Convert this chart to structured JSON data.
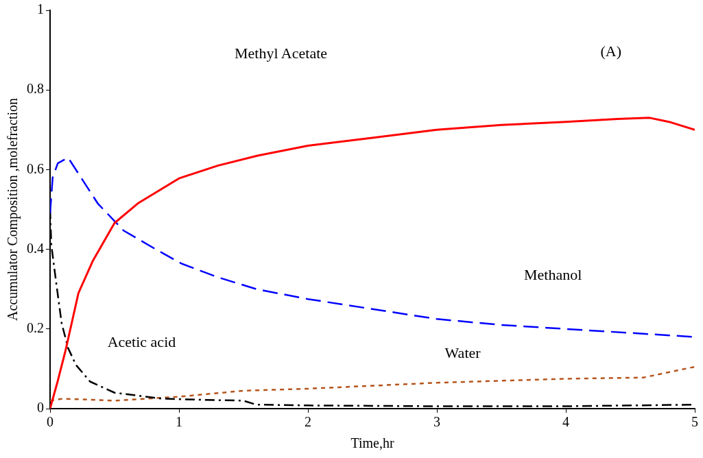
{
  "chart_data": {
    "type": "line",
    "xlabel": "Time,hr",
    "ylabel": "Accumulator Composition ,molefraction",
    "xlim": [
      0,
      5
    ],
    "xticks": [
      0,
      1,
      2,
      3,
      4,
      5
    ],
    "ylim": [
      0,
      1
    ],
    "yticks": [
      0,
      0.2,
      0.4,
      0.6,
      0.8,
      1
    ],
    "grid": false,
    "legend": false,
    "marker": "none",
    "series": [
      {
        "color": "#ff0000",
        "line_style": "solid",
        "x": [
          0,
          0.06,
          0.12,
          0.22,
          0.33,
          0.5,
          0.68,
          1,
          1.3,
          1.61,
          2,
          2.5,
          3,
          3.5,
          4,
          4.4,
          4.65,
          4.8,
          5
        ],
        "values": [
          0,
          0.07,
          0.146,
          0.29,
          0.37,
          0.466,
          0.515,
          0.578,
          0.61,
          0.635,
          0.66,
          0.68,
          0.7,
          0.712,
          0.72,
          0.727,
          0.73,
          0.72,
          0.7
        ]
      },
      {
        "name": "Methanol",
        "color": "#0000ff",
        "line_style": "dashed",
        "x": [
          0,
          0.02,
          0.06,
          0.14,
          0.25,
          0.37,
          0.57,
          0.82,
          1.02,
          1.3,
          1.6,
          2,
          2.5,
          3,
          3.5,
          4,
          4.5,
          5
        ],
        "values": [
          0.49,
          0.58,
          0.616,
          0.63,
          0.575,
          0.515,
          0.447,
          0.4,
          0.364,
          0.33,
          0.3,
          0.275,
          0.25,
          0.225,
          0.21,
          0.2,
          0.19,
          0.18
        ]
      },
      {
        "name": "Acetic acid",
        "color": "#000000",
        "line_style": "dashdot",
        "x": [
          0,
          0.01,
          0.05,
          0.09,
          0.14,
          0.2,
          0.31,
          0.5,
          0.87,
          1.2,
          1.5,
          1.6,
          2,
          3,
          4,
          5
        ],
        "values": [
          0.5,
          0.41,
          0.31,
          0.214,
          0.152,
          0.11,
          0.068,
          0.04,
          0.025,
          0.022,
          0.02,
          0.01,
          0.008,
          0.006,
          0.006,
          0.01
        ]
      },
      {
        "name": "Water",
        "color": "#b5541c",
        "line_style": "dotted",
        "x": [
          0,
          0.1,
          0.5,
          1,
          1.5,
          2,
          3,
          4,
          4.6,
          5
        ],
        "values": [
          0.02,
          0.025,
          0.02,
          0.03,
          0.045,
          0.05,
          0.065,
          0.075,
          0.078,
          0.105
        ]
      }
    ],
    "annotations": [
      "Methyl Acetate",
      "(A)"
    ]
  }
}
